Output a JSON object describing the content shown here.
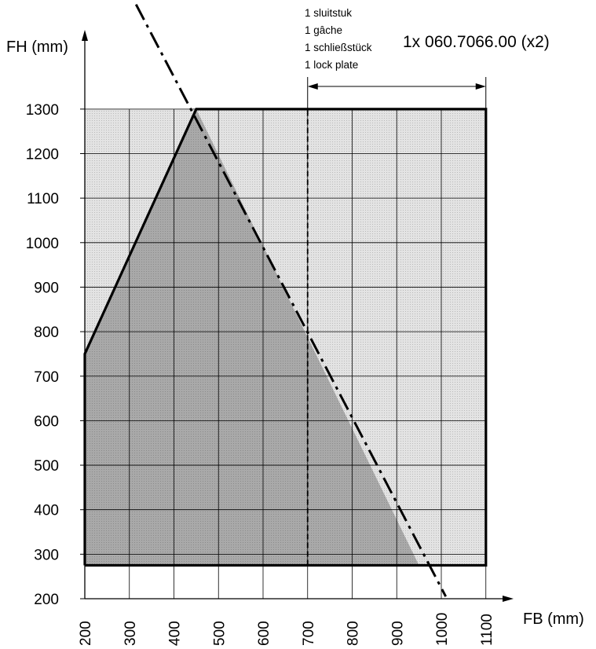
{
  "chart_data": {
    "type": "area",
    "xlabel": "FB (mm)",
    "ylabel": "FH (mm)",
    "xlim": [
      200,
      1100
    ],
    "ylim": [
      200,
      1300
    ],
    "x_ticks": [
      "200",
      "300",
      "400",
      "500",
      "600",
      "700",
      "800",
      "900",
      "1000",
      "1100"
    ],
    "y_ticks": [
      "200",
      "300",
      "400",
      "500",
      "600",
      "700",
      "800",
      "900",
      "1000",
      "1100",
      "1200",
      "1300"
    ],
    "grid": true,
    "regions": [
      {
        "fill": "#e3e3e3",
        "points": [
          [
            200,
            275
          ],
          [
            1100,
            275
          ],
          [
            1100,
            1300
          ],
          [
            200,
            1300
          ]
        ]
      },
      {
        "fill": "#a9a9a9",
        "points": [
          [
            200,
            275
          ],
          [
            950,
            275
          ],
          [
            450,
            1300
          ],
          [
            200,
            750
          ]
        ]
      }
    ],
    "outline": [
      [
        200,
        275
      ],
      [
        200,
        750
      ],
      [
        450,
        1300
      ],
      [
        1100,
        1300
      ],
      [
        1100,
        275
      ],
      [
        200,
        275
      ]
    ],
    "dashdot_line": [
      [
        315,
        1535
      ],
      [
        1010,
        205
      ]
    ],
    "divider_x": 700,
    "dimension_range_x": [
      700,
      1100
    ],
    "note_lines": [
      "1 sluitstuk",
      "1 gâche",
      "1 schließstück",
      "1 lock plate"
    ],
    "part_label": "1x 060.7066.00 (x2)"
  }
}
